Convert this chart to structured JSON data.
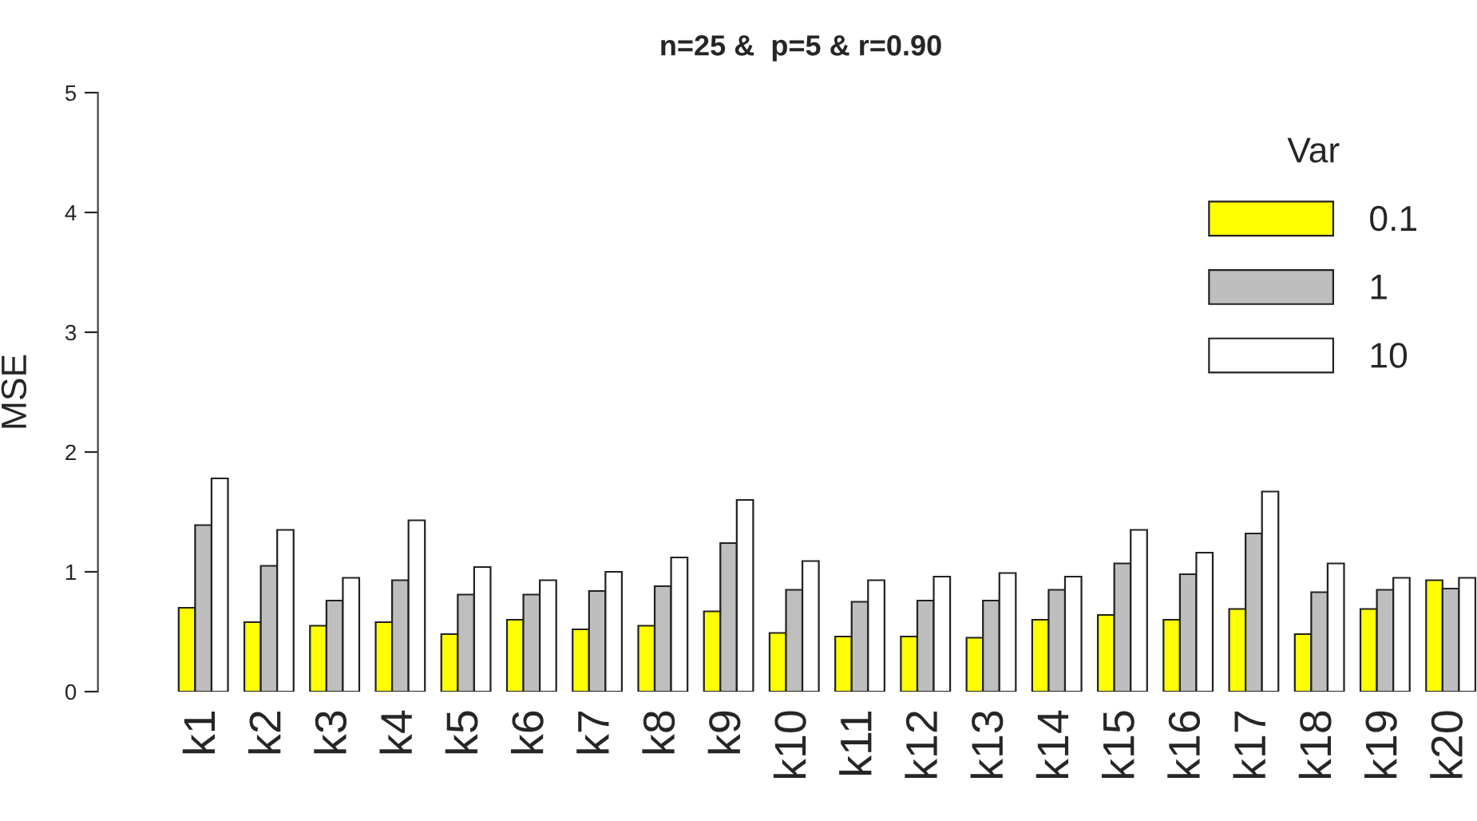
{
  "chart_data": {
    "type": "bar",
    "title": "n=25 &  p=5 & r=0.90",
    "ylabel": "MSE",
    "legend_title": "Var",
    "legend": "top right",
    "categories": [
      "k1",
      "k2",
      "k3",
      "k4",
      "k5",
      "k6",
      "k7",
      "k8",
      "k9",
      "k10",
      "k11",
      "k12",
      "k13",
      "k14",
      "k15",
      "k16",
      "k17",
      "k18",
      "k19",
      "k20"
    ],
    "series": [
      {
        "name": "0.1",
        "color": "#ffff00",
        "values": [
          0.7,
          0.58,
          0.55,
          0.58,
          0.48,
          0.6,
          0.52,
          0.55,
          0.67,
          0.49,
          0.46,
          0.46,
          0.45,
          0.6,
          0.64,
          0.6,
          0.69,
          0.48,
          0.69,
          0.93
        ]
      },
      {
        "name": "1",
        "color": "#bebebe",
        "values": [
          1.39,
          1.05,
          0.76,
          0.93,
          0.81,
          0.81,
          0.84,
          0.88,
          1.24,
          0.85,
          0.75,
          0.76,
          0.76,
          0.85,
          1.07,
          0.98,
          1.32,
          0.83,
          0.85,
          0.86
        ]
      },
      {
        "name": "10",
        "color": "#ffffff",
        "values": [
          1.78,
          1.35,
          0.95,
          1.43,
          1.04,
          0.93,
          1.0,
          1.12,
          1.6,
          1.09,
          0.93,
          0.96,
          0.99,
          0.96,
          1.35,
          1.16,
          1.67,
          1.07,
          0.95,
          0.95
        ]
      }
    ],
    "ylim": [
      0,
      5
    ],
    "yticks": [
      0,
      1,
      2,
      3,
      4,
      5
    ]
  }
}
